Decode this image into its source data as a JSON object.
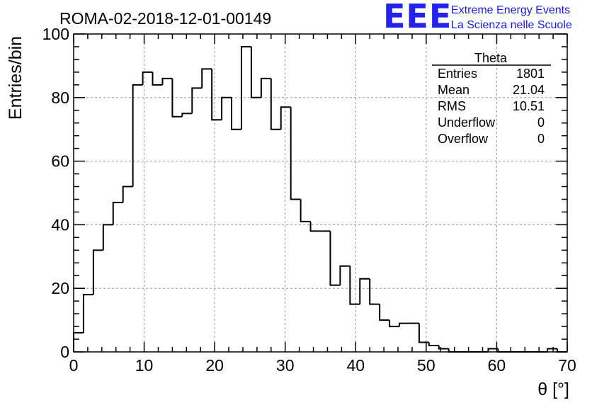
{
  "header": {
    "run_title": "ROMA-02-2018-12-01-00149",
    "logo_mark": "EEE",
    "logo_line1": "Extreme Energy Events",
    "logo_line2": "La Scienza nelle Scuole",
    "logo_color": "#2222ee"
  },
  "stats_box": {
    "title": "Theta",
    "rows": [
      {
        "label": "Entries",
        "value": "1801"
      },
      {
        "label": "Mean",
        "value": "21.04"
      },
      {
        "label": "RMS",
        "value": "10.51"
      },
      {
        "label": "Underflow",
        "value": "0"
      },
      {
        "label": "Overflow",
        "value": "0"
      }
    ]
  },
  "chart_data": {
    "type": "histogram",
    "title": "ROMA-02-2018-12-01-00149",
    "xlabel": "θ [°]",
    "ylabel": "Entries/bin",
    "xlim": [
      0,
      70
    ],
    "ylim": [
      0,
      100
    ],
    "bin_width": 1.4,
    "bin_edges_start": 0,
    "values": [
      6,
      18,
      32,
      40,
      47,
      52,
      84,
      88,
      84,
      86,
      74,
      75,
      83,
      89,
      73,
      80,
      70,
      96,
      80,
      86,
      70,
      77,
      48,
      41,
      38,
      38,
      21,
      27,
      15,
      23,
      15,
      10,
      8,
      9,
      9,
      3,
      2,
      1,
      0,
      0,
      0,
      0,
      1,
      0,
      0,
      0,
      0,
      0,
      1,
      0
    ],
    "x_ticks": [
      0,
      10,
      20,
      30,
      40,
      50,
      60,
      70
    ],
    "y_ticks": [
      0,
      20,
      40,
      60,
      80,
      100
    ],
    "grid": true,
    "line_color": "#000000"
  }
}
